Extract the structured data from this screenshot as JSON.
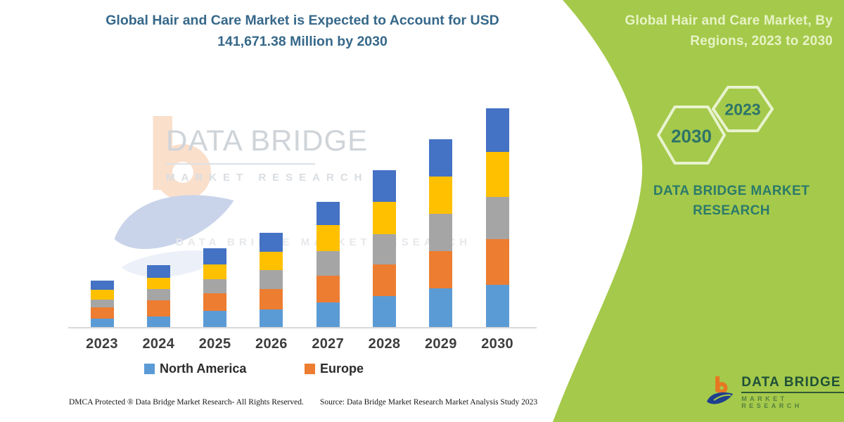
{
  "header": {
    "title": "Global Hair and Care Market is Expected to Account for USD 141,671.38 Million by 2030"
  },
  "chart_data": {
    "type": "bar",
    "stacked": true,
    "title": "Global Hair and Care Market is Expected to Account for USD 141,671.38 Million by 2030",
    "unit": "USD Million (estimated from bar heights; 2030 total labeled as 141,671.38)",
    "categories": [
      "2023",
      "2024",
      "2025",
      "2026",
      "2027",
      "2028",
      "2029",
      "2030"
    ],
    "series": [
      {
        "name": "North America",
        "color": "#5B9BD5",
        "values": [
          5466,
          6833,
          10477,
          11388,
          15943,
          20042,
          25053,
          27330
        ]
      },
      {
        "name": "Europe",
        "color": "#ED7D31",
        "values": [
          7289,
          10477,
          11388,
          13210,
          17310,
          20498,
          24142,
          29608
        ]
      },
      {
        "name": "",
        "color": "#A5A5A5",
        "values": [
          5011,
          7289,
          9110,
          12299,
          15943,
          19587,
          24142,
          27330
        ]
      },
      {
        "name": "",
        "color": "#FFC000",
        "values": [
          6378,
          7289,
          9566,
          11843,
          16854,
          20953,
          24142,
          29152
        ]
      },
      {
        "name": "",
        "color": "#4472C4",
        "values": [
          5922,
          8200,
          10477,
          12299,
          15032,
          20498,
          24142,
          28251.38
        ]
      }
    ],
    "legend": [
      "North America",
      "Europe"
    ],
    "legend_position": "bottom",
    "grid": false,
    "y_axis_visible": false,
    "xlabel": "",
    "ylabel": ""
  },
  "watermark": {
    "brand": "DATA BRIDGE",
    "sub": "MARKET RESEARCH"
  },
  "right_panel": {
    "background_color": "#a5c94b",
    "title": "Global Hair and Care Market, By Regions, 2023 to 2030",
    "hexagons": [
      {
        "label": "2030"
      },
      {
        "label": "2023"
      }
    ],
    "caption_line1": "DATA BRIDGE MARKET",
    "caption_line2": "RESEARCH",
    "logo": {
      "brand": "DATA BRIDGE",
      "sub": "MARKET RESEARCH"
    }
  },
  "footer": {
    "left": "DMCA Protected ® Data Bridge Market Research-  All Rights Reserved.",
    "source": "Source: Data Bridge Market Research  Market Analysis Study 2023"
  }
}
